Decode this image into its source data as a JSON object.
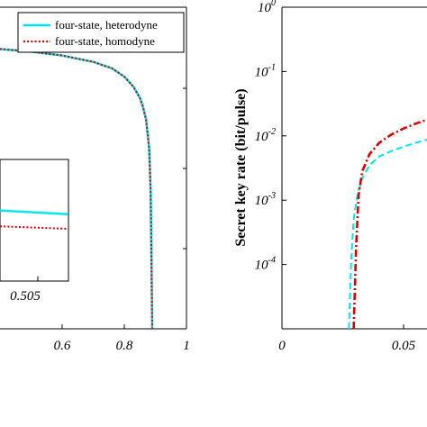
{
  "chart_data": [
    {
      "type": "line",
      "xlim": [
        0.4,
        1.0
      ],
      "x_ticks": [
        "0.6",
        "0.8",
        "1"
      ],
      "grid": false,
      "legend": {
        "placement": "top-right",
        "entries": [
          {
            "label": "four-state, heterodyne",
            "color": "#00e5ee",
            "style": "solid"
          },
          {
            "label": "four-state, homodyne",
            "color": "#dd0000",
            "style": "dotted"
          }
        ]
      },
      "series": [
        {
          "name": "four-state, heterodyne",
          "color": "#00e5ee",
          "x": [
            0.4,
            0.5,
            0.6,
            0.7,
            0.76,
            0.8,
            0.83,
            0.85,
            0.86,
            0.87,
            0.88,
            0.885,
            0.89
          ],
          "y_frac": [
            0.87,
            0.862,
            0.85,
            0.83,
            0.81,
            0.784,
            0.752,
            0.718,
            0.69,
            0.65,
            0.56,
            0.42,
            0.0
          ]
        },
        {
          "name": "four-state, homodyne",
          "color": "#dd0000",
          "x": [
            0.4,
            0.5,
            0.6,
            0.7,
            0.76,
            0.8,
            0.83,
            0.85,
            0.86,
            0.87,
            0.88,
            0.885,
            0.89
          ],
          "y_frac": [
            0.87,
            0.862,
            0.85,
            0.83,
            0.81,
            0.784,
            0.752,
            0.718,
            0.69,
            0.65,
            0.56,
            0.42,
            0.0
          ]
        }
      ],
      "inset": {
        "x_tick": "0.505",
        "series": [
          {
            "name": "four-state, heterodyne",
            "color": "#00e5ee",
            "y_frac": [
              0.58,
              0.55
            ]
          },
          {
            "name": "four-state, homodyne",
            "color": "#dd0000",
            "y_frac": [
              0.45,
              0.43
            ]
          }
        ]
      }
    },
    {
      "type": "line",
      "ylabel": "Secret key rate (bit/pulse)",
      "y_scale": "log",
      "ylim": [
        1e-05,
        1
      ],
      "y_ticks": [
        {
          "base": "10",
          "exp": "0",
          "value": 1
        },
        {
          "base": "10",
          "exp": "-1",
          "value": 0.1
        },
        {
          "base": "10",
          "exp": "-2",
          "value": 0.01
        },
        {
          "base": "10",
          "exp": "-3",
          "value": 0.001
        },
        {
          "base": "10",
          "exp": "-4",
          "value": 0.0001
        }
      ],
      "xlim": [
        0,
        0.1
      ],
      "x_ticks": [
        "0",
        "0.05"
      ],
      "grid": false,
      "series": [
        {
          "name": "cyan-dashed",
          "color": "#00e5ee",
          "style": "dashed",
          "x": [
            0.0275,
            0.0285,
            0.0295,
            0.031,
            0.033,
            0.036,
            0.04,
            0.045,
            0.05,
            0.055,
            0.06,
            0.07,
            0.08,
            0.09,
            0.1
          ],
          "y": [
            1e-05,
            0.00012,
            0.0005,
            0.0012,
            0.0022,
            0.0035,
            0.0048,
            0.0058,
            0.0068,
            0.0078,
            0.0088,
            0.0105,
            0.012,
            0.0135,
            0.015
          ]
        },
        {
          "name": "red-dashdot",
          "color": "#dd0000",
          "style": "dashdot",
          "x": [
            0.0295,
            0.0305,
            0.0315,
            0.033,
            0.036,
            0.04,
            0.045,
            0.05,
            0.055,
            0.06,
            0.07,
            0.08,
            0.09,
            0.1
          ],
          "y": [
            1e-05,
            0.0002,
            0.0012,
            0.0028,
            0.0052,
            0.0078,
            0.0105,
            0.013,
            0.0155,
            0.018,
            0.022,
            0.026,
            0.03,
            0.034
          ]
        }
      ]
    }
  ]
}
